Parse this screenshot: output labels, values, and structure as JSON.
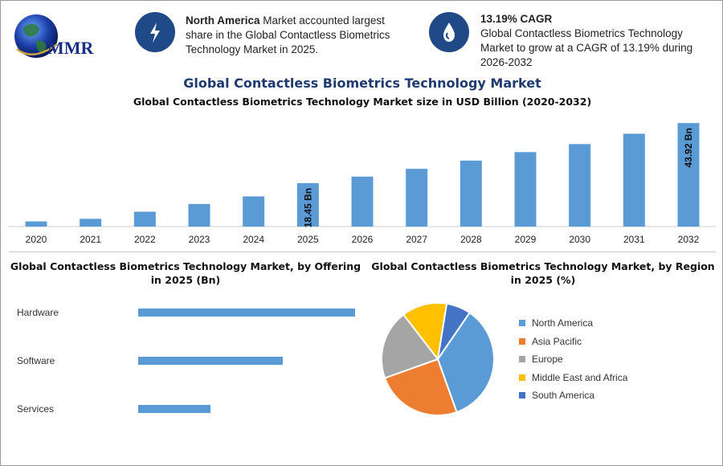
{
  "logo": {
    "text": "MMR"
  },
  "info_left": {
    "icon": "lightning-icon",
    "strong": "North America",
    "text": " Market accounted largest share in the Global Contactless Biometrics Technology Market in 2025."
  },
  "info_right": {
    "icon": "drop-icon",
    "strong": "13.19% CAGR",
    "text": "Global Contactless Biometrics Technology Market to grow at a CAGR of 13.19% during 2026-2032"
  },
  "title": "Global Contactless Biometrics Technology Market",
  "subtitle": "Global Contactless Biometrics Technology Market size in USD Billion (2020-2032)",
  "section_offering_title": "Global Contactless Biometrics Technology Market, by Offering in 2025 (Bn)",
  "section_region_title": "Global Contactless Biometrics Technology Market, by Region in 2025 (%)",
  "colors": {
    "bar": "#5b9bd5",
    "accent": "#1f4a87",
    "title": "#1f3a6e"
  },
  "chart_data": [
    {
      "type": "bar",
      "categories": [
        "2020",
        "2021",
        "2022",
        "2023",
        "2024",
        "2025",
        "2026",
        "2027",
        "2028",
        "2029",
        "2030",
        "2031",
        "2032"
      ],
      "values": [
        2.2,
        3.3,
        6.3,
        9.6,
        12.8,
        18.45,
        21.2,
        24.5,
        28.0,
        31.6,
        35.0,
        39.4,
        43.92
      ],
      "data_labels": {
        "2025": "18.45 Bn",
        "2032": "43.92 Bn"
      },
      "ylim": [
        0,
        45
      ]
    },
    {
      "type": "bar",
      "orientation": "horizontal",
      "categories": [
        "Hardware",
        "Software",
        "Services"
      ],
      "values": [
        9.0,
        6.0,
        3.0
      ]
    },
    {
      "type": "pie",
      "labels": [
        "North America",
        "Asia Pacific",
        "Europe",
        "Middle East and Africa",
        "South America"
      ],
      "values": [
        35,
        25,
        20,
        13,
        7
      ],
      "colors": [
        "#5b9bd5",
        "#ed7d31",
        "#a5a5a5",
        "#ffc000",
        "#4472c4"
      ]
    }
  ]
}
